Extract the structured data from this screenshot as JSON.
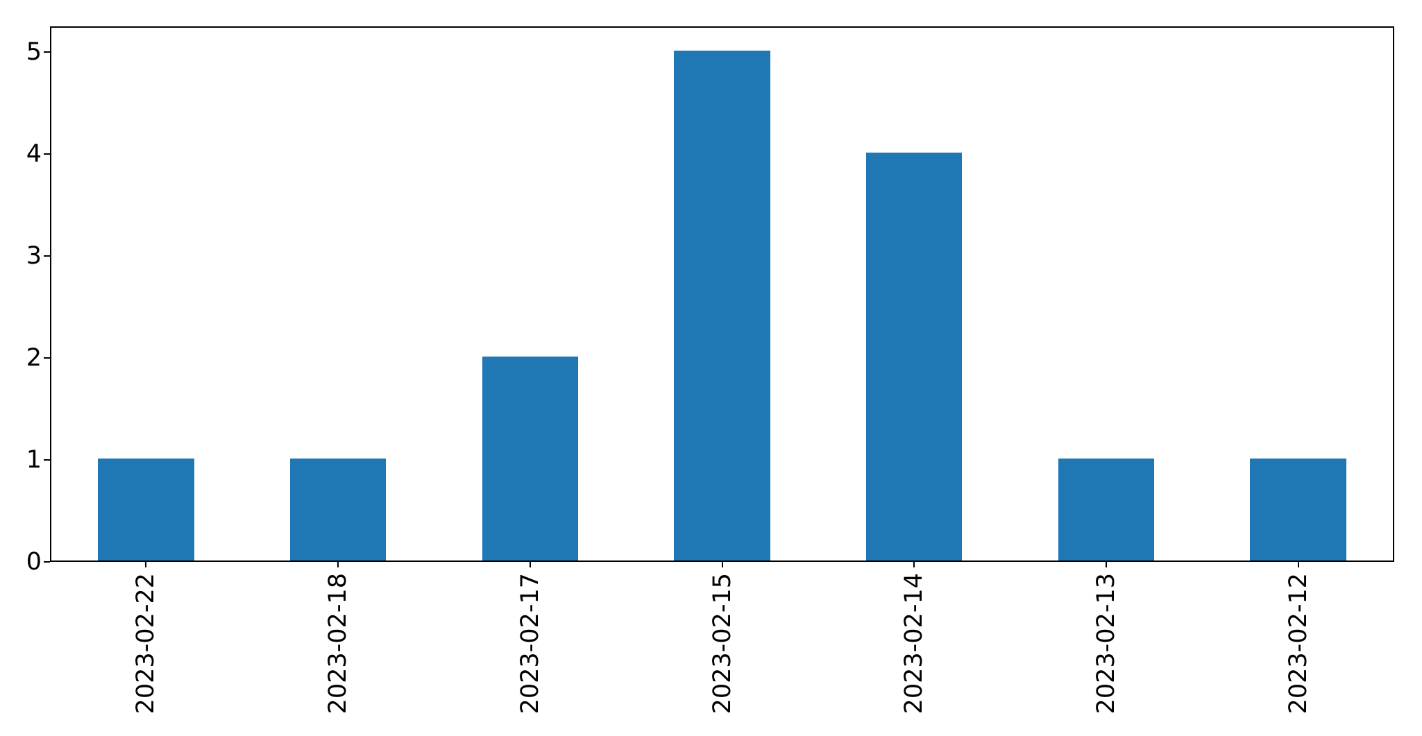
{
  "chart_data": {
    "type": "bar",
    "categories": [
      "2023-02-22",
      "2023-02-18",
      "2023-02-17",
      "2023-02-15",
      "2023-02-14",
      "2023-02-13",
      "2023-02-12"
    ],
    "values": [
      1,
      1,
      2,
      5,
      4,
      1,
      1
    ],
    "title": "",
    "xlabel": "",
    "ylabel": "",
    "ylim": [
      0,
      5.25
    ],
    "yticks": [
      "0",
      "1",
      "2",
      "3",
      "4",
      "5"
    ],
    "x_tick_label_rotation_deg": 90,
    "grid": false,
    "legend": false,
    "colors": {
      "bar": "#1f77b4",
      "axis": "#000000",
      "tick_label": "#000000",
      "background": "#ffffff"
    }
  }
}
